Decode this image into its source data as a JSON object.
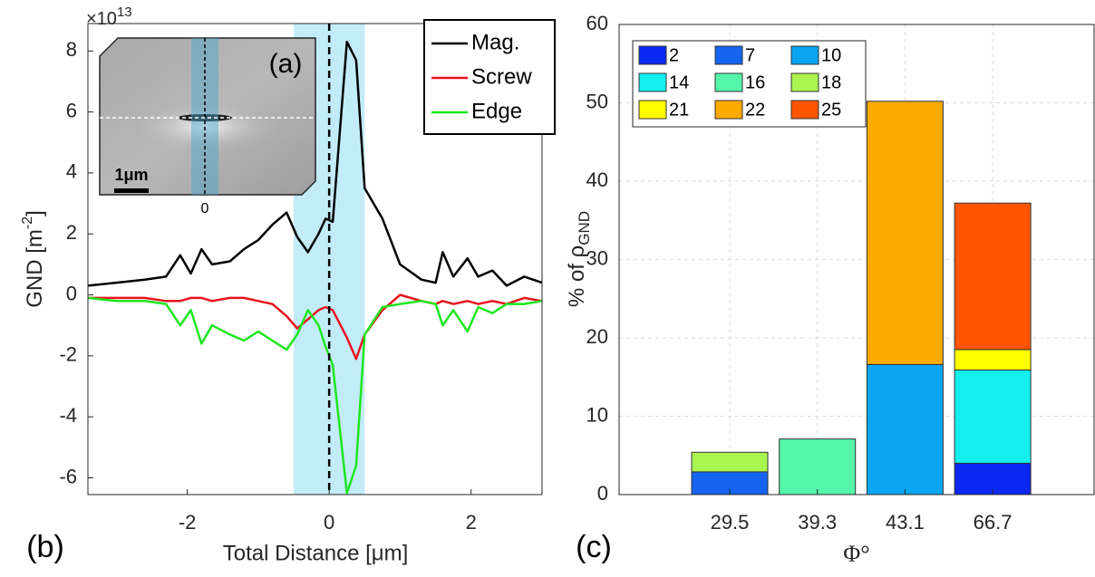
{
  "chart_data": [
    {
      "type": "line",
      "xlabel": "Total Distance [μm]",
      "ylabel": {
        "text": "GND  [m",
        "sup": "-2",
        "end": "]"
      },
      "exponent": {
        "text": "×10",
        "sup": "13"
      },
      "panel": "(b)",
      "inset": {
        "label": "(a)",
        "scale": "1μm",
        "tick": "0"
      },
      "x": [
        -3.4,
        -3.0,
        -2.6,
        -2.3,
        -2.1,
        -1.95,
        -1.8,
        -1.65,
        -1.4,
        -1.2,
        -1.0,
        -0.8,
        -0.6,
        -0.45,
        -0.3,
        -0.15,
        -0.05,
        0.05,
        0.25,
        0.38,
        0.5,
        0.75,
        1.0,
        1.3,
        1.5,
        1.6,
        1.75,
        1.95,
        2.1,
        2.3,
        2.5,
        2.75,
        3.0
      ],
      "series": [
        {
          "name": "Mag.",
          "color": "#000000",
          "values": [
            0.3,
            0.4,
            0.5,
            0.6,
            1.3,
            0.7,
            1.5,
            1.0,
            1.1,
            1.5,
            1.8,
            2.3,
            2.7,
            1.9,
            1.4,
            2.0,
            2.5,
            2.4,
            8.3,
            7.7,
            3.5,
            2.5,
            1.0,
            0.5,
            0.4,
            1.4,
            0.6,
            1.2,
            0.6,
            0.8,
            0.3,
            0.6,
            0.4
          ]
        },
        {
          "name": "Screw",
          "color": "#e8141e",
          "values": [
            -0.1,
            -0.1,
            -0.1,
            -0.2,
            -0.2,
            -0.1,
            -0.1,
            -0.2,
            -0.1,
            -0.1,
            -0.2,
            -0.3,
            -0.7,
            -1.1,
            -0.8,
            -0.5,
            -0.4,
            -0.5,
            -1.4,
            -2.1,
            -1.3,
            -0.5,
            0,
            -0.2,
            -0.3,
            -0.2,
            -0.3,
            -0.2,
            -0.3,
            -0.2,
            -0.3,
            -0.1,
            -0.2
          ]
        },
        {
          "name": "Edge",
          "color": "#1ee61e",
          "values": [
            -0.1,
            -0.2,
            -0.2,
            -0.3,
            -1.0,
            -0.5,
            -1.6,
            -1.0,
            -1.3,
            -1.5,
            -1.2,
            -1.5,
            -1.8,
            -1.3,
            -0.5,
            -1.0,
            -1.7,
            -2.3,
            -6.5,
            -5.6,
            -1.3,
            -0.4,
            -0.3,
            -0.2,
            -0.3,
            -1.0,
            -0.5,
            -1.2,
            -0.4,
            -0.6,
            -0.3,
            -0.3,
            -0.2
          ]
        }
      ],
      "shade": [
        -0.5,
        0.5
      ],
      "shade_color": "#9be0f5",
      "vline": 0,
      "xlim": [
        -3.4,
        3.0
      ],
      "xticks": [
        -2,
        0,
        2
      ],
      "ylim": [
        -6.55,
        8.9
      ],
      "yticks": [
        -6,
        -4,
        -2,
        0,
        2,
        4,
        6,
        8
      ],
      "legend": "top-right"
    },
    {
      "type": "stacked-bar",
      "xlabel": "Φ°",
      "ylabel": {
        "text": "% of ρ",
        "sub": "GND"
      },
      "panel": "(c)",
      "categories": [
        "29.5",
        "39.3",
        "43.1",
        "66.7"
      ],
      "series": [
        {
          "name": "2",
          "color": "#0a28f0",
          "values": [
            null,
            null,
            null,
            4.0
          ]
        },
        {
          "name": "7",
          "color": "#1464f0",
          "values": [
            2.9,
            null,
            null,
            null
          ]
        },
        {
          "name": "10",
          "color": "#0aa5f0",
          "values": [
            null,
            null,
            16.6,
            null
          ]
        },
        {
          "name": "14",
          "color": "#14f0f0",
          "values": [
            null,
            null,
            null,
            11.9
          ]
        },
        {
          "name": "16",
          "color": "#55f5aa",
          "values": [
            null,
            7.1,
            null,
            null
          ]
        },
        {
          "name": "18",
          "color": "#aaf550",
          "values": [
            2.5,
            null,
            null,
            null
          ]
        },
        {
          "name": "21",
          "color": "#ffff00",
          "values": [
            null,
            null,
            null,
            2.6
          ]
        },
        {
          "name": "22",
          "color": "#ffaa00",
          "values": [
            null,
            null,
            33.6,
            null
          ]
        },
        {
          "name": "25",
          "color": "#ff5500",
          "values": [
            null,
            null,
            null,
            18.7
          ]
        }
      ],
      "ylim": [
        0,
        60
      ],
      "yticks": [
        0,
        10,
        20,
        30,
        40,
        50,
        60
      ],
      "grid": true,
      "legend": "top-left"
    }
  ]
}
